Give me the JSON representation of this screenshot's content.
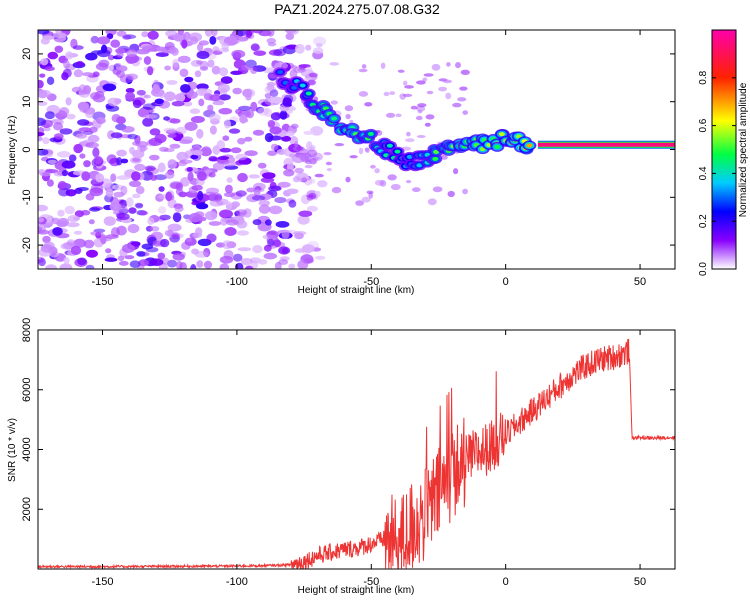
{
  "title": "PAZ1.2024.275.07.08.G32",
  "chart_data": [
    {
      "type": "heatmap",
      "xlabel": "Height of straight line (km)",
      "ylabel": "Frequency (Hz)",
      "xlim": [
        -174,
        63
      ],
      "ylim": [
        -25,
        25
      ],
      "x_ticks": [
        -150,
        -100,
        -50,
        0,
        50
      ],
      "y_ticks": [
        -20,
        -10,
        0,
        10,
        20
      ],
      "colorbar": {
        "label": "Normalized spectral amplitude",
        "range": [
          0,
          1
        ],
        "ticks": [
          0.0,
          0.2,
          0.4,
          0.6,
          0.8
        ],
        "colors": [
          "#ffffff",
          "#8800ff",
          "#0000ff",
          "#00ccff",
          "#00ff44",
          "#ffff00",
          "#ff2200",
          "#ff00aa"
        ]
      },
      "ridge": [
        {
          "x": -84,
          "y": 15,
          "amp": 0.3
        },
        {
          "x": -78,
          "y": 13.5,
          "amp": 0.35
        },
        {
          "x": -72,
          "y": 10,
          "amp": 0.45
        },
        {
          "x": -66,
          "y": 7.5,
          "amp": 0.5
        },
        {
          "x": -60,
          "y": 5,
          "amp": 0.55
        },
        {
          "x": -54,
          "y": 3,
          "amp": 0.5
        },
        {
          "x": -48,
          "y": 1.5,
          "amp": 0.45
        },
        {
          "x": -42,
          "y": -1,
          "amp": 0.4
        },
        {
          "x": -36,
          "y": -3,
          "amp": 0.4
        },
        {
          "x": -30,
          "y": -2,
          "amp": 0.45
        },
        {
          "x": -24,
          "y": 0,
          "amp": 0.5
        },
        {
          "x": -18,
          "y": 1,
          "amp": 0.55
        },
        {
          "x": -12,
          "y": 0.8,
          "amp": 0.55
        },
        {
          "x": -6,
          "y": 1,
          "amp": 0.6
        },
        {
          "x": 0,
          "y": 2.5,
          "amp": 0.55
        },
        {
          "x": 5,
          "y": 1.5,
          "amp": 0.6
        },
        {
          "x": 10,
          "y": 1.2,
          "amp": 0.65
        }
      ],
      "tone_band": {
        "x_start": 12,
        "x_end": 63,
        "y": 1,
        "amp": 0.95
      },
      "noise_x_end": -80
    },
    {
      "type": "line",
      "xlabel": "Height of straight line (km)",
      "ylabel": "SNR (10 * v/v)",
      "xlim": [
        -174,
        63
      ],
      "ylim": [
        0,
        8000
      ],
      "x_ticks": [
        -150,
        -100,
        -50,
        0,
        50
      ],
      "y_ticks": [
        2000,
        4000,
        6000,
        8000
      ],
      "color": "#ee3333",
      "x": [
        -174,
        -150,
        -120,
        -100,
        -90,
        -80,
        -75,
        -70,
        -65,
        -60,
        -55,
        -50,
        -45,
        -40,
        -35,
        -30,
        -25,
        -20,
        -15,
        -10,
        -5,
        0,
        5,
        10,
        15,
        20,
        25,
        30,
        35,
        40,
        45,
        46,
        47,
        50,
        55,
        60,
        63
      ],
      "y": [
        80,
        80,
        90,
        100,
        110,
        140,
        250,
        450,
        550,
        650,
        700,
        850,
        1000,
        800,
        1400,
        1800,
        2500,
        3200,
        3600,
        3900,
        4100,
        4500,
        4900,
        5300,
        5700,
        6100,
        6500,
        6800,
        7000,
        7100,
        7250,
        7300,
        4400,
        4400,
        4380,
        4400,
        4400
      ]
    }
  ]
}
